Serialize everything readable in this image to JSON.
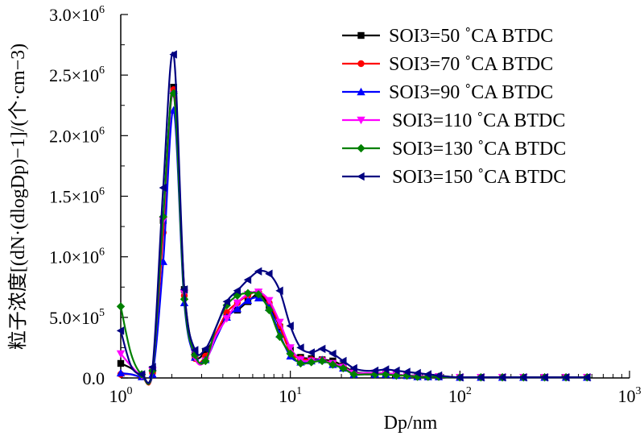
{
  "chart_data": {
    "type": "line",
    "x_scale": "log",
    "xlim": [
      1,
      1000
    ],
    "ylim": [
      0,
      3000000
    ],
    "xlabel": "Dp/nm",
    "ylabel": "粒子浓度[(dN·(dlogDp)−1]/(个·cm−3)",
    "x_ticks": [
      {
        "value": 1,
        "mantissa": "10",
        "exp": "0"
      },
      {
        "value": 10,
        "mantissa": "10",
        "exp": "1"
      },
      {
        "value": 100,
        "mantissa": "10",
        "exp": "2"
      },
      {
        "value": 1000,
        "mantissa": "10",
        "exp": "3"
      }
    ],
    "y_ticks": [
      {
        "value": 0,
        "mantissa": "0.0",
        "exp": ""
      },
      {
        "value": 500000,
        "mantissa": "5.0×10",
        "exp": "5"
      },
      {
        "value": 1000000,
        "mantissa": "1.0×10",
        "exp": "6"
      },
      {
        "value": 1500000,
        "mantissa": "1.5×10",
        "exp": "6"
      },
      {
        "value": 2000000,
        "mantissa": "2.0×10",
        "exp": "6"
      },
      {
        "value": 2500000,
        "mantissa": "2.5×10",
        "exp": "6"
      },
      {
        "value": 3000000,
        "mantissa": "3.0×10",
        "exp": "6"
      }
    ],
    "x": [
      1.0,
      1.15,
      1.33,
      1.54,
      1.78,
      2.05,
      2.37,
      2.74,
      3.16,
      3.65,
      4.22,
      4.87,
      5.62,
      6.49,
      7.5,
      8.66,
      10.0,
      11.5,
      13.3,
      15.4,
      17.8,
      20.5,
      23.7,
      27.4,
      31.6,
      36.5,
      42.2,
      48.7,
      56.2,
      64.9,
      75.0,
      86.6,
      100.0,
      115.0,
      133.0,
      154.0,
      178.0,
      205.0,
      237.0,
      274.0,
      316.0,
      365.0,
      422.0,
      487.0,
      562.0
    ],
    "legend_position": "top-right",
    "series": [
      {
        "name": "SOI3=50 ˚CA BTDC",
        "color": "#000000",
        "marker": "square",
        "values": [
          120000,
          80000,
          20000,
          70000,
          1300000,
          2400000,
          730000,
          200000,
          220000,
          350000,
          520000,
          560000,
          630000,
          690000,
          600000,
          420000,
          230000,
          170000,
          160000,
          150000,
          140000,
          100000,
          50000,
          40000,
          40000,
          40000,
          30000,
          20000,
          20000,
          10000,
          10000,
          5000,
          5000,
          5000,
          5000,
          5000,
          5000,
          5000,
          5000,
          5000,
          5000,
          5000,
          5000,
          5000,
          5000
        ]
      },
      {
        "name": "SOI3=70 ˚CA BTDC",
        "color": "#ff0000",
        "marker": "circle",
        "values": [
          30000,
          30000,
          10000,
          40000,
          1200000,
          2380000,
          680000,
          160000,
          180000,
          370000,
          540000,
          620000,
          680000,
          710000,
          620000,
          430000,
          210000,
          160000,
          150000,
          150000,
          120000,
          90000,
          40000,
          30000,
          30000,
          30000,
          20000,
          20000,
          10000,
          10000,
          10000,
          5000,
          5000,
          5000,
          5000,
          5000,
          5000,
          5000,
          5000,
          5000,
          5000,
          5000,
          5000,
          5000,
          5000
        ]
      },
      {
        "name": "SOI3=90 ˚CA BTDC",
        "color": "#0000ff",
        "marker": "triangle-up",
        "values": [
          40000,
          30000,
          10000,
          30000,
          960000,
          2210000,
          620000,
          170000,
          150000,
          330000,
          500000,
          570000,
          640000,
          660000,
          580000,
          360000,
          180000,
          130000,
          140000,
          150000,
          110000,
          80000,
          30000,
          30000,
          30000,
          30000,
          20000,
          20000,
          10000,
          10000,
          10000,
          5000,
          5000,
          5000,
          5000,
          5000,
          5000,
          5000,
          5000,
          5000,
          5000,
          5000,
          5000,
          5000,
          5000
        ]
      },
      {
        "name": "SOI3=110 ˚CA BTDC",
        "color": "#ff00ff",
        "marker": "triangle-down",
        "values": [
          200000,
          100000,
          20000,
          60000,
          1300000,
          2340000,
          700000,
          170000,
          140000,
          350000,
          490000,
          620000,
          690000,
          710000,
          640000,
          460000,
          250000,
          150000,
          140000,
          140000,
          120000,
          90000,
          40000,
          40000,
          40000,
          40000,
          30000,
          20000,
          20000,
          10000,
          10000,
          5000,
          5000,
          5000,
          5000,
          5000,
          5000,
          5000,
          5000,
          5000,
          5000,
          5000,
          5000,
          5000,
          5000
        ]
      },
      {
        "name": "SOI3=130 ˚CA BTDC",
        "color": "#008000",
        "marker": "diamond",
        "values": [
          590000,
          200000,
          30000,
          60000,
          1330000,
          2350000,
          650000,
          190000,
          140000,
          420000,
          600000,
          680000,
          700000,
          690000,
          560000,
          340000,
          200000,
          120000,
          130000,
          140000,
          110000,
          80000,
          30000,
          30000,
          30000,
          30000,
          20000,
          20000,
          10000,
          10000,
          10000,
          5000,
          5000,
          5000,
          5000,
          5000,
          5000,
          5000,
          5000,
          5000,
          5000,
          5000,
          5000,
          5000,
          5000
        ]
      },
      {
        "name": "SOI3=150 ˚CA BTDC",
        "color": "#000080",
        "marker": "triangle-left",
        "values": [
          390000,
          100000,
          30000,
          90000,
          1570000,
          2670000,
          730000,
          230000,
          240000,
          420000,
          630000,
          720000,
          810000,
          880000,
          860000,
          720000,
          430000,
          250000,
          210000,
          240000,
          200000,
          140000,
          80000,
          60000,
          60000,
          70000,
          60000,
          50000,
          40000,
          30000,
          20000,
          10000,
          5000,
          5000,
          5000,
          5000,
          5000,
          5000,
          5000,
          5000,
          5000,
          5000,
          5000,
          5000,
          5000
        ]
      }
    ]
  }
}
